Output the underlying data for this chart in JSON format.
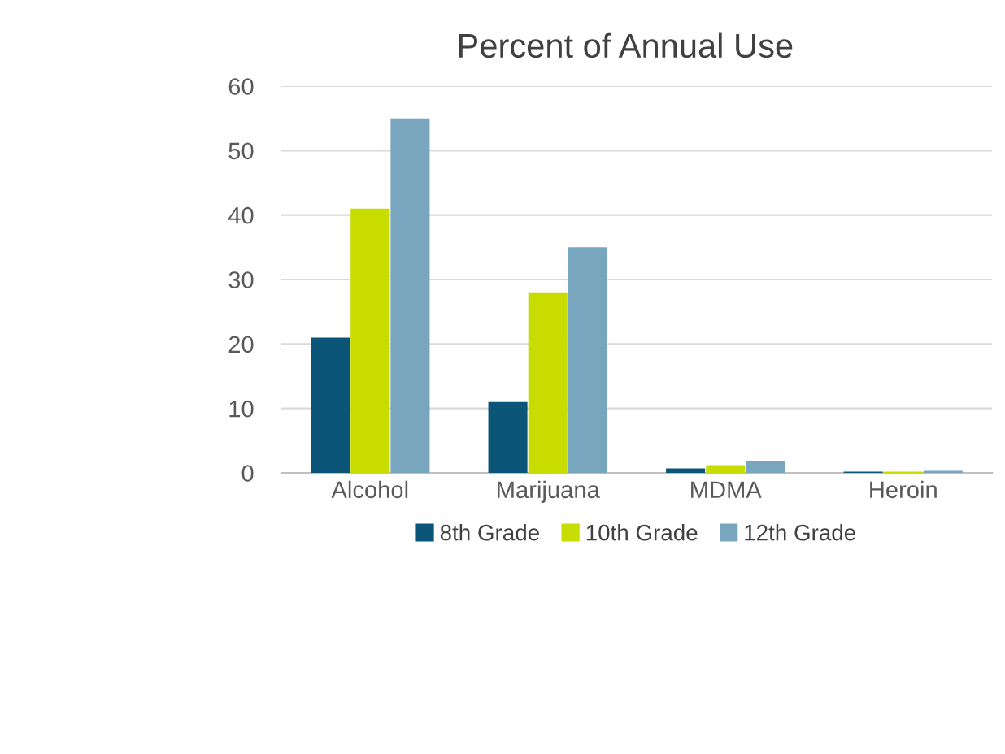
{
  "chart_data": {
    "type": "bar",
    "title": "Percent of Annual Use",
    "categories": [
      "Alcohol",
      "Marijuana",
      "MDMA",
      "Heroin"
    ],
    "series": [
      {
        "name": "8th Grade",
        "color": "#0b5578",
        "values": [
          21,
          11,
          0.7,
          0.2
        ]
      },
      {
        "name": "10th Grade",
        "color": "#c8dc00",
        "values": [
          41,
          28,
          1.2,
          0.2
        ]
      },
      {
        "name": "12th Grade",
        "color": "#78a6bf",
        "values": [
          55,
          35,
          1.8,
          0.3
        ]
      }
    ],
    "ylim": [
      0,
      60
    ],
    "yticks": [
      0,
      10,
      20,
      30,
      40,
      50,
      60
    ],
    "grid": "y",
    "legend": "bottom"
  }
}
